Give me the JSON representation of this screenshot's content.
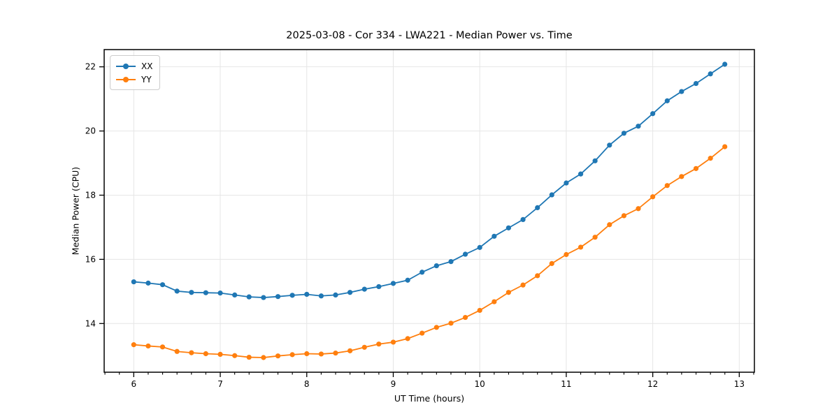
{
  "chart_data": {
    "type": "line",
    "title": "2025-03-08 - Cor 334 - LWA221 - Median Power vs. Time",
    "xlabel": "UT Time (hours)",
    "ylabel": "Median Power (CPU)",
    "xlim": [
      5.658,
      13.175
    ],
    "ylim": [
      12.483,
      22.537
    ],
    "xticks": [
      6,
      7,
      8,
      9,
      10,
      11,
      12,
      13
    ],
    "yticks": [
      14,
      16,
      18,
      20,
      22
    ],
    "minor_x_step": 0.16667,
    "grid": true,
    "legend_position": "upper left",
    "background_color": "#ffffff",
    "grid_color": "#e6e6e6",
    "spine_color": "#000000",
    "x": [
      6.0,
      6.167,
      6.333,
      6.5,
      6.667,
      6.833,
      7.0,
      7.167,
      7.333,
      7.5,
      7.667,
      7.833,
      8.0,
      8.167,
      8.333,
      8.5,
      8.667,
      8.833,
      9.0,
      9.167,
      9.333,
      9.5,
      9.667,
      9.833,
      10.0,
      10.167,
      10.333,
      10.5,
      10.667,
      10.833,
      11.0,
      11.167,
      11.333,
      11.5,
      11.667,
      11.833,
      12.0,
      12.167,
      12.333,
      12.5,
      12.667,
      12.833
    ],
    "series": [
      {
        "name": "XX",
        "color": "#1f77b4",
        "values": [
          15.3,
          15.26,
          15.21,
          15.01,
          14.97,
          14.96,
          14.95,
          14.89,
          14.83,
          14.81,
          14.84,
          14.88,
          14.91,
          14.86,
          14.89,
          14.97,
          15.07,
          15.15,
          15.25,
          15.35,
          15.6,
          15.8,
          15.93,
          16.16,
          16.37,
          16.72,
          16.98,
          17.24,
          17.61,
          18.01,
          18.38,
          18.66,
          19.07,
          19.56,
          19.93,
          20.15,
          20.54,
          20.94,
          21.23,
          21.48,
          21.78,
          22.08
        ]
      },
      {
        "name": "YY",
        "color": "#ff7f0e",
        "values": [
          13.34,
          13.3,
          13.27,
          13.13,
          13.09,
          13.06,
          13.04,
          13.0,
          12.95,
          12.94,
          12.99,
          13.03,
          13.06,
          13.05,
          13.08,
          13.15,
          13.26,
          13.36,
          13.42,
          13.53,
          13.7,
          13.88,
          14.01,
          14.19,
          14.41,
          14.68,
          14.97,
          15.2,
          15.49,
          15.87,
          16.15,
          16.38,
          16.69,
          17.08,
          17.36,
          17.58,
          17.95,
          18.3,
          18.58,
          18.83,
          19.15,
          19.51
        ]
      }
    ]
  }
}
